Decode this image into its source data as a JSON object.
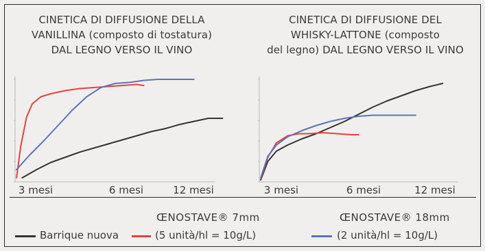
{
  "colors": {
    "barrique": "#333333",
    "oenostave7": "#e8413b",
    "oenostave18": "#5a74b8",
    "axis": "#b8b8b8",
    "background": "#f1efed"
  },
  "panels": [
    {
      "title_lines": [
        "CINETICA DI DIFFUSIONE DELLA",
        "VANILLINA (composto di tostatura)",
        "DAL LEGNO VERSO IL VINO"
      ]
    },
    {
      "title_lines": [
        "CINETICA DI DIFFUSIONE DEL",
        "WHISKY-LATTONE (composto",
        "del legno) DAL LEGNO VERSO IL VINO"
      ]
    }
  ],
  "legend": {
    "barrique_label": "Barrique nuova",
    "oenostave7_line1": "ŒNOSTAVE® 7mm",
    "oenostave7_line2": "(5 unità/hl = 10g/L)",
    "oenostave18_line1": "ŒNOSTAVE® 18mm",
    "oenostave18_line2": "(2 unità/hl = 10g/L)"
  },
  "chart_data": [
    {
      "type": "line",
      "title": "CINETICA DI DIFFUSIONE DELLA VANILLINA (composto di tostatura) DAL LEGNO VERSO IL VINO",
      "xlabel": "",
      "ylabel": "",
      "x_unit": "mesi",
      "x_ticks": [
        {
          "x": 3,
          "label": "3 mesi"
        },
        {
          "x": 6,
          "label": "6 mesi"
        },
        {
          "x": 12,
          "label": "12 mesi"
        }
      ],
      "xlim": [
        0,
        14
      ],
      "ylim": [
        0,
        100
      ],
      "grid": false,
      "series": [
        {
          "name": "Barrique nuova",
          "color_key": "barrique",
          "x": [
            0.5,
            1.5,
            2.5,
            3.5,
            4.5,
            5.5,
            6.5,
            7.5,
            8.5,
            9.5,
            10.5,
            11.5,
            12.5,
            13.5,
            14.5
          ],
          "y": [
            4,
            12,
            19,
            24,
            29,
            33,
            37,
            41,
            45,
            49,
            52,
            56,
            59,
            62,
            62
          ]
        },
        {
          "name": "ŒNOSTAVE® 7mm",
          "color_key": "oenostave7",
          "x": [
            0.1,
            0.4,
            0.8,
            1.2,
            1.8,
            2.5,
            3.5,
            4.5,
            5.5,
            6.5,
            7.5,
            8.5,
            9.0
          ],
          "y": [
            4,
            35,
            63,
            76,
            83,
            86,
            89,
            91,
            92,
            93,
            94,
            95,
            94
          ]
        },
        {
          "name": "ŒNOSTAVE® 18mm",
          "color_key": "oenostave18",
          "x": [
            0.1,
            1.0,
            2.0,
            3.0,
            4.0,
            5.0,
            6.0,
            7.0,
            8.0,
            9.0,
            10.0,
            11.0,
            12.0,
            12.5
          ],
          "y": [
            12,
            26,
            40,
            55,
            70,
            83,
            92,
            96,
            97,
            99,
            100,
            100,
            100,
            100
          ]
        }
      ]
    },
    {
      "type": "line",
      "title": "CINETICA DI DIFFUSIONE DEL WHISKY-LATTONE (composto del legno) DAL LEGNO VERSO IL VINO",
      "xlabel": "",
      "ylabel": "",
      "x_unit": "mesi",
      "x_ticks": [
        {
          "x": 3,
          "label": "3 mesi"
        },
        {
          "x": 6,
          "label": "6 mesi"
        },
        {
          "x": 12,
          "label": "12 mesi"
        }
      ],
      "xlim": [
        0,
        14
      ],
      "ylim": [
        0,
        100
      ],
      "grid": false,
      "series": [
        {
          "name": "Barrique nuova",
          "color_key": "barrique",
          "x": [
            0.1,
            0.6,
            1.2,
            2.0,
            3.0,
            4.0,
            5.0,
            6.0,
            7.0,
            8.0,
            9.0,
            10.0,
            11.0,
            12.0,
            12.9
          ],
          "y": [
            2,
            20,
            30,
            36,
            42,
            47,
            53,
            59,
            66,
            73,
            79,
            84,
            89,
            93,
            96
          ]
        },
        {
          "name": "ŒNOSTAVE® 7mm",
          "color_key": "oenostave7",
          "x": [
            0.1,
            0.6,
            1.2,
            2.0,
            2.8,
            3.5,
            4.5,
            5.5,
            6.5,
            7.0
          ],
          "y": [
            3,
            24,
            38,
            45,
            47,
            47,
            48,
            47,
            46,
            46
          ]
        },
        {
          "name": "ŒNOSTAVE® 18mm",
          "color_key": "oenostave18",
          "x": [
            0.1,
            0.6,
            1.2,
            2.0,
            3.0,
            4.0,
            5.0,
            6.0,
            7.0,
            8.0,
            9.0,
            10.0,
            11.0
          ],
          "y": [
            4,
            25,
            36,
            44,
            50,
            55,
            59,
            62,
            64,
            65,
            65,
            65,
            65
          ]
        }
      ]
    }
  ]
}
